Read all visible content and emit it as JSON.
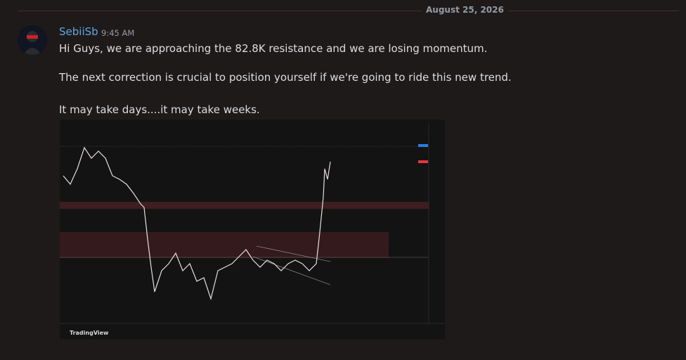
{
  "divider_date": "August 25, 2026",
  "message": {
    "author": "SebiiSb",
    "time": "9:45 AM",
    "lines": [
      "Hi Guys, we are approaching the 82.8K resistance and we are losing momentum.",
      "The next correction is crucial to position yourself if we're going to ride this new trend.",
      "It may take days....it may take weeks."
    ]
  },
  "attachment": {
    "watermark": "TradingView"
  }
}
